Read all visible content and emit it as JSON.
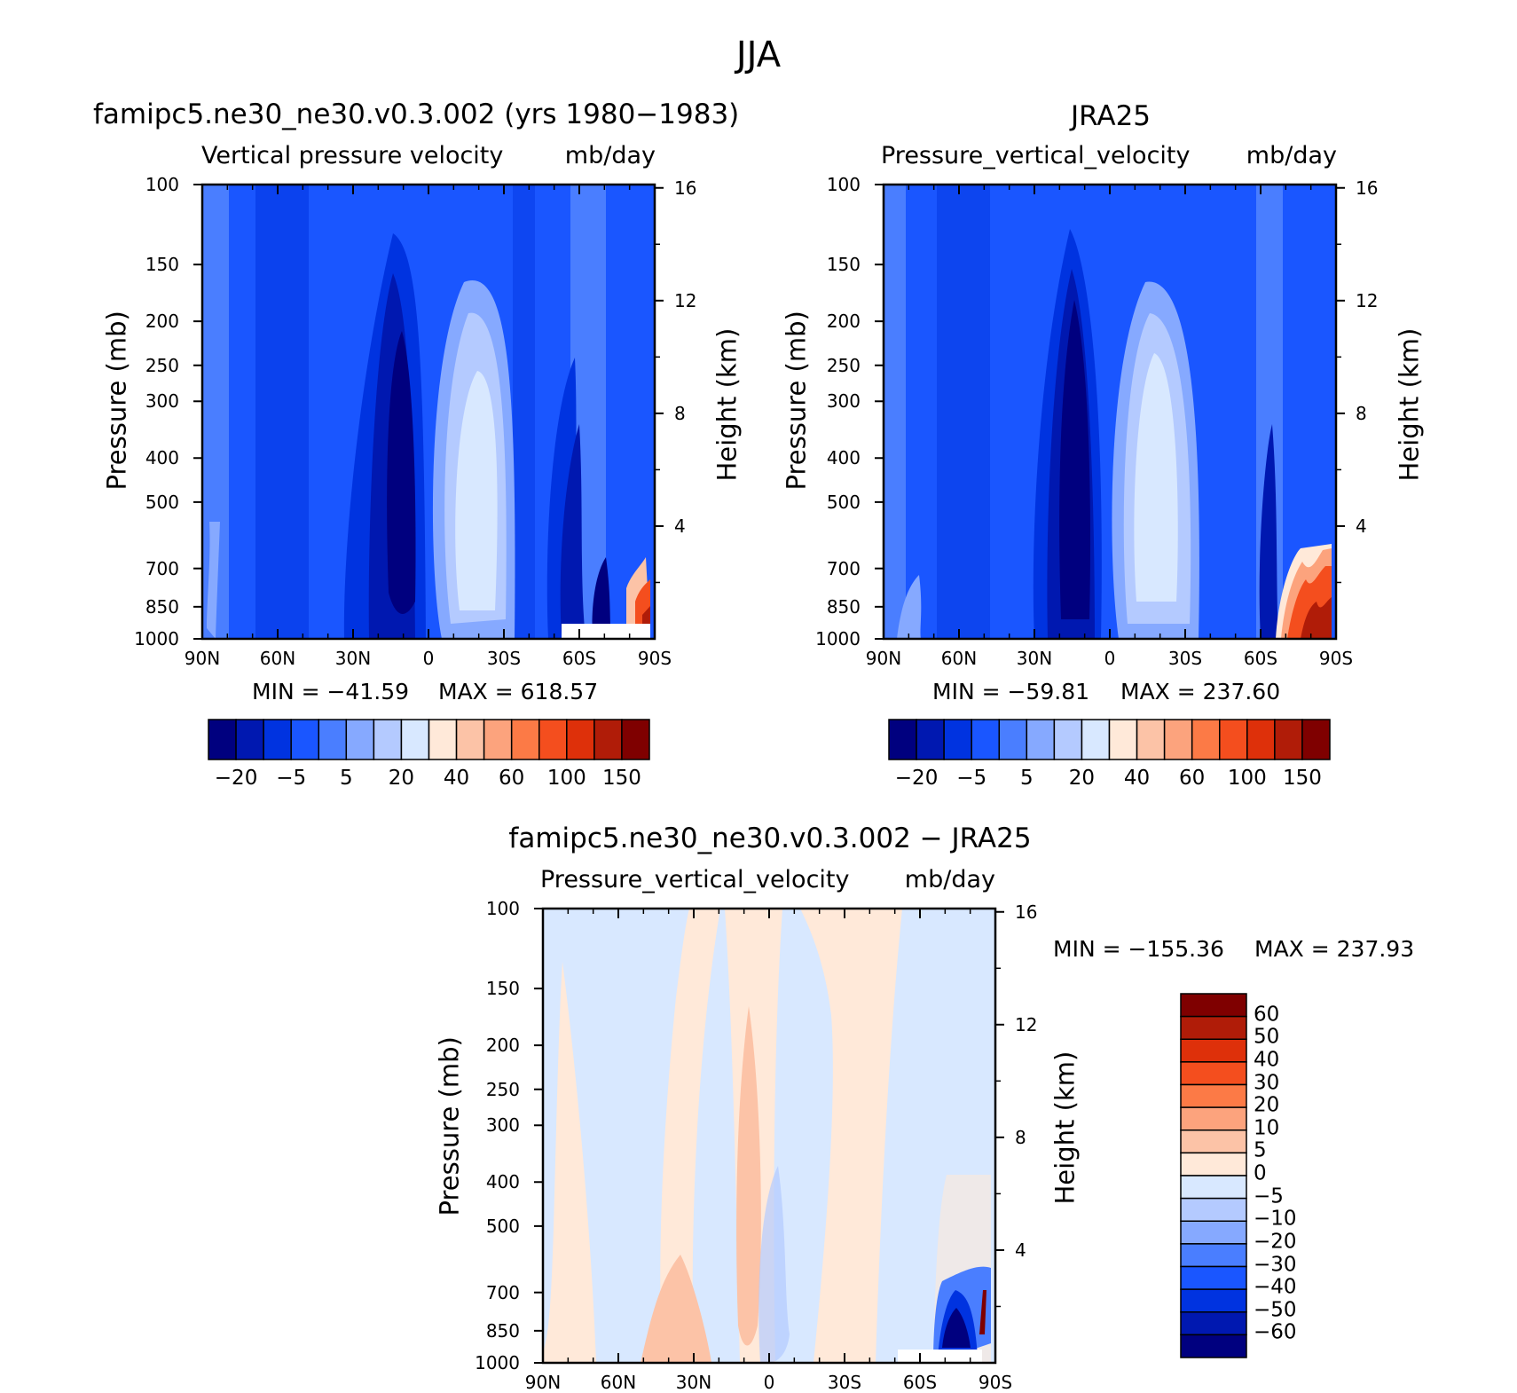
{
  "title": "JJA",
  "chart_data": [
    {
      "type": "heatmap",
      "title": "famipc5.ne30_ne30.v0.3.002 (yrs 1980−1983)",
      "subtitle_left": "Vertical pressure velocity",
      "subtitle_right": "mb/day",
      "xlabel": "",
      "ylabel": "Pressure (mb)",
      "ylabel_right": "Height (km)",
      "x_ticks": [
        "90N",
        "60N",
        "30N",
        "0",
        "30S",
        "60S",
        "90S"
      ],
      "y_ticks": [
        "100",
        "150",
        "200",
        "250",
        "300",
        "400",
        "500",
        "700",
        "850",
        "1000"
      ],
      "y_ticks_values": [
        100,
        150,
        200,
        250,
        300,
        400,
        500,
        700,
        850,
        1000
      ],
      "y_right_ticks": [
        "16",
        "12",
        "8",
        "4"
      ],
      "y_right_values": [
        16,
        12,
        8,
        4
      ],
      "min_label": "MIN = −41.59",
      "max_label": "MAX = 618.57",
      "colorbar_labels": [
        "−20",
        "−5",
        "5",
        "20",
        "40",
        "60",
        "100",
        "150"
      ],
      "colorbar_colors": [
        "#00007f",
        "#0018b0",
        "#0033e0",
        "#1a56ff",
        "#4a7eff",
        "#86a9ff",
        "#b4caff",
        "#d8e8ff",
        "#ffe9d9",
        "#fcc3a7",
        "#fca37d",
        "#fc7a46",
        "#f44e1e",
        "#de300a",
        "#b01c08",
        "#7f0000"
      ]
    },
    {
      "type": "heatmap",
      "title": "JRA25",
      "subtitle_left": "Pressure_vertical_velocity",
      "subtitle_right": "mb/day",
      "xlabel": "",
      "ylabel": "Pressure (mb)",
      "ylabel_right": "Height (km)",
      "x_ticks": [
        "90N",
        "60N",
        "30N",
        "0",
        "30S",
        "60S",
        "90S"
      ],
      "y_ticks": [
        "100",
        "150",
        "200",
        "250",
        "300",
        "400",
        "500",
        "700",
        "850",
        "1000"
      ],
      "y_ticks_values": [
        100,
        150,
        200,
        250,
        300,
        400,
        500,
        700,
        850,
        1000
      ],
      "y_right_ticks": [
        "16",
        "12",
        "8",
        "4"
      ],
      "y_right_values": [
        16,
        12,
        8,
        4
      ],
      "min_label": "MIN = −59.81",
      "max_label": "MAX = 237.60",
      "colorbar_labels": [
        "−20",
        "−5",
        "5",
        "20",
        "40",
        "60",
        "100",
        "150"
      ],
      "colorbar_colors": [
        "#00007f",
        "#0018b0",
        "#0033e0",
        "#1a56ff",
        "#4a7eff",
        "#86a9ff",
        "#b4caff",
        "#d8e8ff",
        "#ffe9d9",
        "#fcc3a7",
        "#fca37d",
        "#fc7a46",
        "#f44e1e",
        "#de300a",
        "#b01c08",
        "#7f0000"
      ]
    },
    {
      "type": "heatmap",
      "title": "famipc5.ne30_ne30.v0.3.002 − JRA25",
      "subtitle_left": "Pressure_vertical_velocity",
      "subtitle_right": "mb/day",
      "xlabel": "",
      "ylabel": "Pressure (mb)",
      "ylabel_right": "Height (km)",
      "x_ticks": [
        "90N",
        "60N",
        "30N",
        "0",
        "30S",
        "60S",
        "90S"
      ],
      "y_ticks": [
        "100",
        "150",
        "200",
        "250",
        "300",
        "400",
        "500",
        "700",
        "850",
        "1000"
      ],
      "y_ticks_values": [
        100,
        150,
        200,
        250,
        300,
        400,
        500,
        700,
        850,
        1000
      ],
      "y_right_ticks": [
        "16",
        "12",
        "8",
        "4"
      ],
      "y_right_values": [
        16,
        12,
        8,
        4
      ],
      "min_label": "MIN = −155.36",
      "max_label": "MAX = 237.93",
      "colorbar_labels": [
        "60",
        "50",
        "40",
        "30",
        "20",
        "10",
        "5",
        "0",
        "−5",
        "−10",
        "−20",
        "−30",
        "−40",
        "−50",
        "−60"
      ],
      "colorbar_colors": [
        "#7f0000",
        "#b01c08",
        "#de300a",
        "#f44e1e",
        "#fc7a46",
        "#fca37d",
        "#fcc3a7",
        "#ffe9d9",
        "#d8e8ff",
        "#b4caff",
        "#86a9ff",
        "#4a7eff",
        "#1a56ff",
        "#0033e0",
        "#0018b0",
        "#00007f"
      ]
    }
  ]
}
